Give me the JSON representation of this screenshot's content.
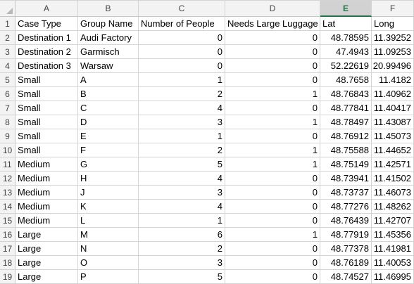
{
  "columns": [
    "A",
    "B",
    "C",
    "D",
    "E",
    "F"
  ],
  "selected_column": "E",
  "rows": [
    {
      "n": "1",
      "cells": [
        "Case Type",
        "Group Name",
        "Number of People",
        "Needs Large Luggage",
        "Lat",
        "Long"
      ]
    },
    {
      "n": "2",
      "cells": [
        "Destination 1",
        "Audi Factory",
        "0",
        "0",
        "48.78595",
        "11.39252"
      ]
    },
    {
      "n": "3",
      "cells": [
        "Destination 2",
        "Garmisch",
        "0",
        "0",
        "47.4943",
        "11.09253"
      ]
    },
    {
      "n": "4",
      "cells": [
        "Destination 3",
        "Warsaw",
        "0",
        "0",
        "52.22619",
        "20.99496"
      ]
    },
    {
      "n": "5",
      "cells": [
        "Small",
        "A",
        "1",
        "0",
        "48.7658",
        "11.4182"
      ]
    },
    {
      "n": "6",
      "cells": [
        "Small",
        "B",
        "2",
        "1",
        "48.76843",
        "11.40962"
      ]
    },
    {
      "n": "7",
      "cells": [
        "Small",
        "C",
        "4",
        "0",
        "48.77841",
        "11.40417"
      ]
    },
    {
      "n": "8",
      "cells": [
        "Small",
        "D",
        "3",
        "1",
        "48.78497",
        "11.43087"
      ]
    },
    {
      "n": "9",
      "cells": [
        "Small",
        "E",
        "1",
        "0",
        "48.76912",
        "11.45073"
      ]
    },
    {
      "n": "10",
      "cells": [
        "Small",
        "F",
        "2",
        "1",
        "48.75588",
        "11.44652"
      ]
    },
    {
      "n": "11",
      "cells": [
        "Medium",
        "G",
        "5",
        "1",
        "48.75149",
        "11.42571"
      ]
    },
    {
      "n": "12",
      "cells": [
        "Medium",
        "H",
        "4",
        "0",
        "48.73941",
        "11.41502"
      ]
    },
    {
      "n": "13",
      "cells": [
        "Medium",
        "J",
        "3",
        "0",
        "48.73737",
        "11.46073"
      ]
    },
    {
      "n": "14",
      "cells": [
        "Medium",
        "K",
        "4",
        "0",
        "48.77276",
        "11.48262"
      ]
    },
    {
      "n": "15",
      "cells": [
        "Medium",
        "L",
        "1",
        "0",
        "48.76439",
        "11.42707"
      ]
    },
    {
      "n": "16",
      "cells": [
        "Large",
        "M",
        "6",
        "1",
        "48.77919",
        "11.45356"
      ]
    },
    {
      "n": "17",
      "cells": [
        "Large",
        "N",
        "2",
        "0",
        "48.77378",
        "11.41981"
      ]
    },
    {
      "n": "18",
      "cells": [
        "Large",
        "O",
        "3",
        "0",
        "48.76189",
        "11.40053"
      ]
    },
    {
      "n": "19",
      "cells": [
        "Large",
        "P",
        "5",
        "0",
        "48.74527",
        "11.46995"
      ]
    }
  ]
}
